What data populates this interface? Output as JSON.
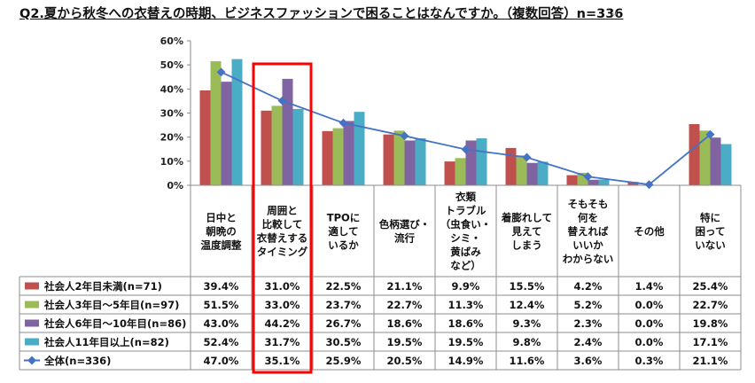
{
  "title": "Q2.夏から秋冬への衣替えの時期、ビジネスファッションで困ることはなんですか。（複数回答）n=336",
  "chart_data": {
    "type": "bar",
    "ylim": [
      0,
      60
    ],
    "yticks": [
      "0%",
      "10%",
      "20%",
      "30%",
      "40%",
      "50%",
      "60%"
    ],
    "grid": false,
    "categories": [
      [
        "日中と",
        "朝晩の",
        "温度調整"
      ],
      [
        "周囲と",
        "比較して",
        "衣替えする",
        "タイミング"
      ],
      [
        "TPOに",
        "適して",
        "いるか"
      ],
      [
        "色柄選び・",
        "流行"
      ],
      [
        "衣類",
        "トラブル",
        "（虫食い・",
        "シミ・",
        "黄ばみ",
        "など）"
      ],
      [
        "着膨れして",
        "見えて",
        "しまう"
      ],
      [
        "そもそも",
        "何を",
        "替えれば",
        "いいか",
        "わからない"
      ],
      [
        "その他"
      ],
      [
        "特に",
        "困って",
        "いない"
      ]
    ],
    "series": [
      {
        "name": "社会人2年目未満(n=71)",
        "type": "bar",
        "color": "#c0504d",
        "values": [
          39.4,
          31.0,
          22.5,
          21.1,
          9.9,
          15.5,
          4.2,
          1.4,
          25.4
        ],
        "labels": [
          "39.4%",
          "31.0%",
          "22.5%",
          "21.1%",
          "9.9%",
          "15.5%",
          "4.2%",
          "1.4%",
          "25.4%"
        ]
      },
      {
        "name": "社会人3年目～5年目(n=97)",
        "type": "bar",
        "color": "#9bbb59",
        "values": [
          51.5,
          33.0,
          23.7,
          22.7,
          11.3,
          12.4,
          5.2,
          0.0,
          22.7
        ],
        "labels": [
          "51.5%",
          "33.0%",
          "23.7%",
          "22.7%",
          "11.3%",
          "12.4%",
          "5.2%",
          "0.0%",
          "22.7%"
        ]
      },
      {
        "name": "社会人6年目～10年目(n=86)",
        "type": "bar",
        "color": "#8064a2",
        "values": [
          43.0,
          44.2,
          26.7,
          18.6,
          18.6,
          9.3,
          2.3,
          0.0,
          19.8
        ],
        "labels": [
          "43.0%",
          "44.2%",
          "26.7%",
          "18.6%",
          "18.6%",
          "9.3%",
          "2.3%",
          "0.0%",
          "19.8%"
        ]
      },
      {
        "name": "社会人11年目以上(n=82)",
        "type": "bar",
        "color": "#4bacc6",
        "values": [
          52.4,
          31.7,
          30.5,
          19.5,
          19.5,
          9.8,
          2.4,
          0.0,
          17.1
        ],
        "labels": [
          "52.4%",
          "31.7%",
          "30.5%",
          "19.5%",
          "19.5%",
          "9.8%",
          "2.4%",
          "0.0%",
          "17.1%"
        ]
      },
      {
        "name": "全体(n=336)",
        "type": "line",
        "color": "#4472c4",
        "values": [
          47.0,
          35.1,
          25.9,
          20.5,
          14.9,
          11.6,
          3.6,
          0.3,
          21.1
        ],
        "labels": [
          "47.0%",
          "35.1%",
          "25.9%",
          "20.5%",
          "14.9%",
          "11.6%",
          "3.6%",
          "0.3%",
          "21.1%"
        ]
      }
    ],
    "highlight_category_index": 1,
    "highlight_color": "#ff0000",
    "data_table": true
  }
}
